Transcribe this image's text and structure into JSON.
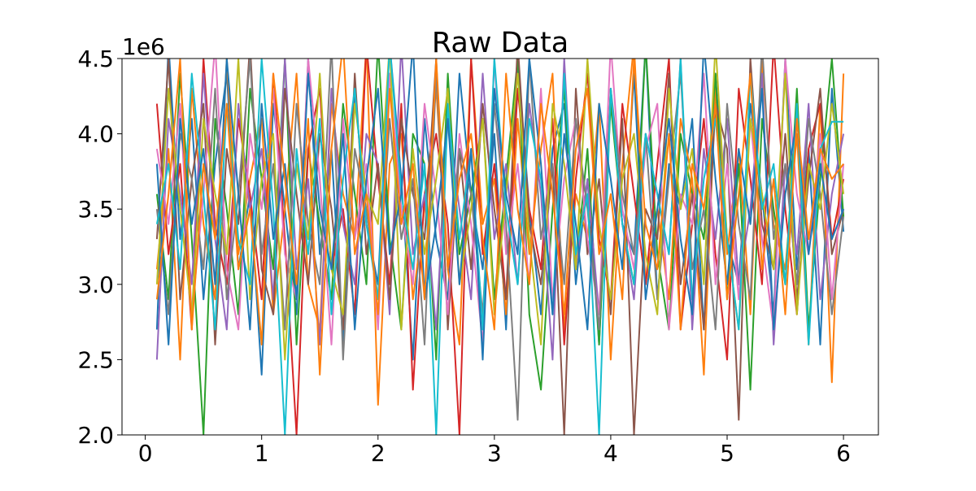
{
  "chart_data": {
    "type": "line",
    "title": "Raw Data",
    "xlabel": "",
    "ylabel": "",
    "xlim": [
      -0.2,
      6.3
    ],
    "ylim": [
      2000000,
      4500000
    ],
    "y_offset_label": "1e6",
    "x_ticks": [
      0,
      1,
      2,
      3,
      4,
      5,
      6
    ],
    "x_tick_labels": [
      "0",
      "1",
      "2",
      "3",
      "4",
      "5",
      "6"
    ],
    "y_ticks": [
      2000000,
      2500000,
      3000000,
      3500000,
      4000000,
      4500000
    ],
    "y_tick_labels": [
      "2.0",
      "2.5",
      "3.0",
      "3.5",
      "4.0",
      "4.5"
    ],
    "grid": false,
    "legend": "none",
    "x": [
      0.1,
      0.2,
      0.3,
      0.4,
      0.5,
      0.6,
      0.7,
      0.8,
      0.9,
      1.0,
      1.1,
      1.2,
      1.3,
      1.4,
      1.5,
      1.6,
      1.7,
      1.8,
      1.9,
      2.0,
      2.1,
      2.2,
      2.3,
      2.4,
      2.5,
      2.6,
      2.7,
      2.8,
      2.9,
      3.0,
      3.1,
      3.2,
      3.3,
      3.4,
      3.5,
      3.6,
      3.7,
      3.8,
      3.9,
      4.0,
      4.1,
      4.2,
      4.3,
      4.4,
      4.5,
      4.6,
      4.7,
      4.8,
      4.9,
      5.0,
      5.1,
      5.2,
      5.3,
      5.4,
      5.5,
      5.6,
      5.7,
      5.8,
      5.9,
      6.0
    ],
    "series": [
      {
        "color": "#1f77b4",
        "values": [
          2700000,
          4600000,
          3300000,
          4100000,
          2900000,
          3800000,
          4400000,
          3100000,
          3600000,
          2400000,
          4200000,
          3500000,
          2800000,
          4500000,
          3200000,
          3900000,
          2600000,
          4300000,
          3400000,
          3000000,
          4600000,
          3700000,
          2500000,
          4100000,
          3300000,
          2900000,
          4400000,
          3600000,
          3100000,
          4000000,
          2700000,
          4500000,
          3500000,
          2800000,
          3900000,
          4200000,
          3000000,
          3700000,
          2600000,
          4300000,
          3400000,
          3200000,
          4600000,
          2900000,
          3800000,
          3500000,
          4100000,
          2700000,
          4400000,
          3300000,
          3000000,
          4200000,
          3600000,
          2800000,
          4500000,
          3100000,
          3900000,
          2600000,
          4300000,
          3350000
        ]
      },
      {
        "color": "#ff7f0e",
        "values": [
          3100000,
          3900000,
          2500000,
          4300000,
          3400000,
          2900000,
          4500000,
          3200000,
          3700000,
          4100000,
          2800000,
          3500000,
          4400000,
          3000000,
          2700000,
          4200000,
          3600000,
          3300000,
          4600000,
          2200000,
          3800000,
          4000000,
          2900000,
          3500000,
          4300000,
          3100000,
          2600000,
          4500000,
          3400000,
          3700000,
          2800000,
          4100000,
          3200000,
          3900000,
          4400000,
          2700000,
          3600000,
          3300000,
          4200000,
          2500000,
          3800000,
          4600000,
          3000000,
          3500000,
          2900000,
          4100000,
          3700000,
          2400000,
          4300000,
          3200000,
          3900000,
          2800000,
          4500000,
          3400000,
          3100000,
          4000000,
          2600000,
          4200000,
          2350000,
          4400000
        ]
      },
      {
        "color": "#2ca02c",
        "values": [
          3600000,
          2900000,
          4400000,
          3300000,
          2000000,
          4100000,
          3500000,
          2800000,
          4300000,
          3700000,
          3100000,
          4500000,
          2600000,
          3900000,
          3400000,
          2900000,
          4200000,
          3600000,
          3000000,
          4600000,
          3300000,
          2700000,
          4000000,
          3800000,
          2500000,
          4400000,
          3200000,
          3600000,
          4100000,
          2900000,
          3700000,
          4500000,
          2800000,
          2300000,
          3500000,
          4300000,
          3100000,
          3900000,
          2600000,
          4200000,
          3400000,
          3000000,
          4600000,
          3200000,
          2700000,
          4000000,
          3600000,
          3300000,
          4400000,
          2900000,
          3800000,
          2300000,
          4100000,
          3500000,
          3000000,
          4300000,
          2700000,
          3700000,
          4500000,
          3450000
        ]
      },
      {
        "color": "#d62728",
        "values": [
          4200000,
          3200000,
          3800000,
          2700000,
          4500000,
          3400000,
          3000000,
          4100000,
          3600000,
          2900000,
          4400000,
          3300000,
          2000000,
          3900000,
          4300000,
          3100000,
          3500000,
          2800000,
          4600000,
          3700000,
          3000000,
          4200000,
          2300000,
          3600000,
          4000000,
          3400000,
          2000000,
          4500000,
          3200000,
          3800000,
          2900000,
          4300000,
          3500000,
          3100000,
          4100000,
          2600000,
          3700000,
          4400000,
          3300000,
          2900000,
          4200000,
          3600000,
          3000000,
          3800000,
          4500000,
          2700000,
          3400000,
          4100000,
          3200000,
          2500000,
          4300000,
          3700000,
          3000000,
          4600000,
          3500000,
          2800000,
          3900000,
          4200000,
          3300000,
          3700000
        ]
      },
      {
        "color": "#9467bd",
        "values": [
          2500000,
          4100000,
          3600000,
          3000000,
          4400000,
          3300000,
          2700000,
          4200000,
          3500000,
          3900000,
          2900000,
          4500000,
          3100000,
          3700000,
          2600000,
          4300000,
          3400000,
          3000000,
          4000000,
          3800000,
          2800000,
          4600000,
          3200000,
          3600000,
          2700000,
          4100000,
          3500000,
          2900000,
          4400000,
          3300000,
          3800000,
          3000000,
          4200000,
          3600000,
          2500000,
          4500000,
          3100000,
          3700000,
          2800000,
          4300000,
          3400000,
          2900000,
          4000000,
          3600000,
          3200000,
          4500000,
          2700000,
          3900000,
          3300000,
          4100000,
          3000000,
          3500000,
          4400000,
          2600000,
          3800000,
          3200000,
          4200000,
          2900000,
          3600000,
          4000000
        ]
      },
      {
        "color": "#8c564b",
        "values": [
          3300000,
          4500000,
          2900000,
          3700000,
          4200000,
          2600000,
          3900000,
          3400000,
          4600000,
          3100000,
          2800000,
          4300000,
          3600000,
          3000000,
          4000000,
          3500000,
          2700000,
          4400000,
          3200000,
          3800000,
          2900000,
          4100000,
          3600000,
          3300000,
          4500000,
          2700000,
          3900000,
          3100000,
          4200000,
          3500000,
          2900000,
          4600000,
          3400000,
          3000000,
          3800000,
          2000000,
          4300000,
          3200000,
          3700000,
          2800000,
          4100000,
          2000000,
          3500000,
          3300000,
          4400000,
          3000000,
          3600000,
          2700000,
          4200000,
          3900000,
          2100000,
          4500000,
          3400000,
          3100000,
          4000000,
          2900000,
          3700000,
          4300000,
          3200000,
          3500000
        ]
      },
      {
        "color": "#e377c2",
        "values": [
          3900000,
          3400000,
          4200000,
          2800000,
          3600000,
          4600000,
          3100000,
          2700000,
          4000000,
          3500000,
          4300000,
          3200000,
          2900000,
          4500000,
          3700000,
          2600000,
          4100000,
          3300000,
          3800000,
          2700000,
          4400000,
          3500000,
          3000000,
          4200000,
          3600000,
          2800000,
          4000000,
          3400000,
          2600000,
          4500000,
          3200000,
          3800000,
          3000000,
          4300000,
          2900000,
          3700000,
          4100000,
          3300000,
          2800000,
          4600000,
          3500000,
          3100000,
          3900000,
          4200000,
          2700000,
          3600000,
          3400000,
          4400000,
          3000000,
          3800000,
          2900000,
          4100000,
          3300000,
          2700000,
          4500000,
          3600000,
          3200000,
          4000000,
          2900000,
          3800000
        ]
      },
      {
        "color": "#7f7f7f",
        "values": [
          3500000,
          2800000,
          4000000,
          3700000,
          3100000,
          4300000,
          2900000,
          3600000,
          4500000,
          3200000,
          3800000,
          2700000,
          4200000,
          3400000,
          3000000,
          4600000,
          2500000,
          3900000,
          3500000,
          2900000,
          4100000,
          3300000,
          3700000,
          2600000,
          4400000,
          3100000,
          3900000,
          3600000,
          2800000,
          4200000,
          3400000,
          2100000,
          4500000,
          3300000,
          3800000,
          3000000,
          4100000,
          3500000,
          2700000,
          4300000,
          3600000,
          3200000,
          4000000,
          2900000,
          3700000,
          4400000,
          3100000,
          3500000,
          2700000,
          4200000,
          3400000,
          2900000,
          4600000,
          3300000,
          3800000,
          3000000,
          4100000,
          3600000,
          2800000,
          3450000
        ]
      },
      {
        "color": "#bcbd22",
        "values": [
          3000000,
          4300000,
          3500000,
          2800000,
          4100000,
          3600000,
          3200000,
          4500000,
          2900000,
          3700000,
          4000000,
          2500000,
          3800000,
          3300000,
          4400000,
          3100000,
          2800000,
          4200000,
          3600000,
          3400000,
          4600000,
          2700000,
          3900000,
          3200000,
          3700000,
          4300000,
          3000000,
          3500000,
          4100000,
          2800000,
          3600000,
          4400000,
          3300000,
          2600000,
          4200000,
          3800000,
          3100000,
          4500000,
          3400000,
          2900000,
          3700000,
          4000000,
          3200000,
          2800000,
          4300000,
          3500000,
          3900000,
          3000000,
          4600000,
          3300000,
          2700000,
          4100000,
          3600000,
          3100000,
          4400000,
          2800000,
          3800000,
          3500000,
          4200000,
          3600000
        ]
      },
      {
        "color": "#17becf",
        "values": [
          3400000,
          3800000,
          3100000,
          4400000,
          3600000,
          2700000,
          4200000,
          3300000,
          3000000,
          4500000,
          3500000,
          2000000,
          3900000,
          3200000,
          4100000,
          2800000,
          3700000,
          4300000,
          3400000,
          2900000,
          4600000,
          3600000,
          3100000,
          3800000,
          2000000,
          4200000,
          3300000,
          3900000,
          2700000,
          4500000,
          3500000,
          3000000,
          4100000,
          3700000,
          2800000,
          4400000,
          3200000,
          3600000,
          2000000,
          4300000,
          3400000,
          3000000,
          4000000,
          3600000,
          3200000,
          4500000,
          2900000,
          3700000,
          4100000,
          3300000,
          2700000,
          4400000,
          3500000,
          3800000,
          3000000,
          4200000,
          2600000,
          3900000,
          4080000,
          4080000
        ]
      },
      {
        "color": "#1f77b4",
        "values": [
          3800000,
          2600000,
          4100000,
          3400000,
          3900000,
          3000000,
          4500000,
          3600000,
          2700000,
          4200000,
          3300000,
          3800000,
          2900000,
          4400000,
          3500000,
          3100000,
          4000000,
          2700000,
          3700000,
          4300000,
          3200000,
          3600000,
          4600000,
          2900000,
          3400000,
          4100000,
          3000000,
          3900000,
          2500000,
          4300000,
          3600000,
          3200000,
          4500000,
          3800000,
          2800000,
          4000000,
          3400000,
          2700000,
          4200000,
          3700000,
          3100000,
          4400000,
          2900000,
          3500000,
          4100000,
          3300000,
          2800000,
          4600000,
          3700000,
          3000000,
          3900000,
          3400000,
          4300000,
          2700000,
          3600000,
          4100000,
          3200000,
          3800000,
          3300000,
          3500000
        ]
      },
      {
        "color": "#ff7f0e",
        "values": [
          2900000,
          3600000,
          4500000,
          2700000,
          3800000,
          3300000,
          4200000,
          3100000,
          3500000,
          2600000,
          4400000,
          3700000,
          3000000,
          4100000,
          2400000,
          3900000,
          4600000,
          3200000,
          3600000,
          2800000,
          4300000,
          3400000,
          3800000,
          2900000,
          4500000,
          3100000,
          3700000,
          4000000,
          3300000,
          2700000,
          4400000,
          3500000,
          3000000,
          4200000,
          3600000,
          2800000,
          3900000,
          4300000,
          3200000,
          3600000,
          2900000,
          4500000,
          3400000,
          3100000,
          4000000,
          2700000,
          3800000,
          3500000,
          4200000,
          2900000,
          3600000,
          4400000,
          3100000,
          3700000,
          2800000,
          4100000,
          3300000,
          3900000,
          3700000,
          3800000
        ]
      }
    ]
  }
}
